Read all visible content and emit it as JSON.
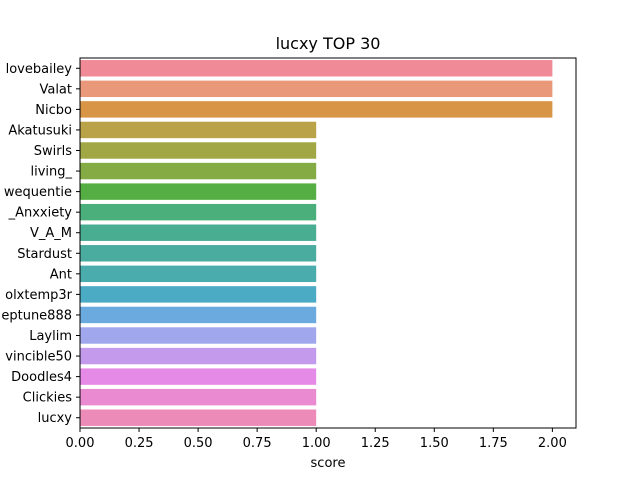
{
  "chart_data": {
    "type": "bar",
    "orientation": "horizontal",
    "title": "lucxy TOP 30",
    "xlabel": "score",
    "ylabel": "",
    "xlim": [
      0,
      2.1
    ],
    "xticks": [
      "0.00",
      "0.25",
      "0.50",
      "0.75",
      "1.00",
      "1.25",
      "1.50",
      "1.75",
      "2.00"
    ],
    "grid": false,
    "categories": [
      "lovebailey",
      "Valat",
      "Nicbo",
      "Akatusuki",
      "Swirls",
      "living_",
      "wequentie",
      "_Anxxiety",
      "V_A_M",
      "Stardust",
      "Ant",
      "olxtemp3r",
      "eptune888",
      "Laylim",
      "vincible50",
      "Doodles4",
      "Clickies",
      "lucxy"
    ],
    "values": [
      2,
      2,
      2,
      1,
      1,
      1,
      1,
      1,
      1,
      1,
      1,
      1,
      1,
      1,
      1,
      1,
      1,
      1
    ],
    "colors": [
      "#ef8a96",
      "#e9987a",
      "#d89546",
      "#b9a247",
      "#a1a744",
      "#85ab45",
      "#55ae43",
      "#4aaf7a",
      "#49ad92",
      "#4aac9f",
      "#4aacad",
      "#4cabc4",
      "#6aaadf",
      "#a1a7ec",
      "#c49aec",
      "#e58ae7",
      "#ea8bd2",
      "#ec8ab8"
    ]
  }
}
